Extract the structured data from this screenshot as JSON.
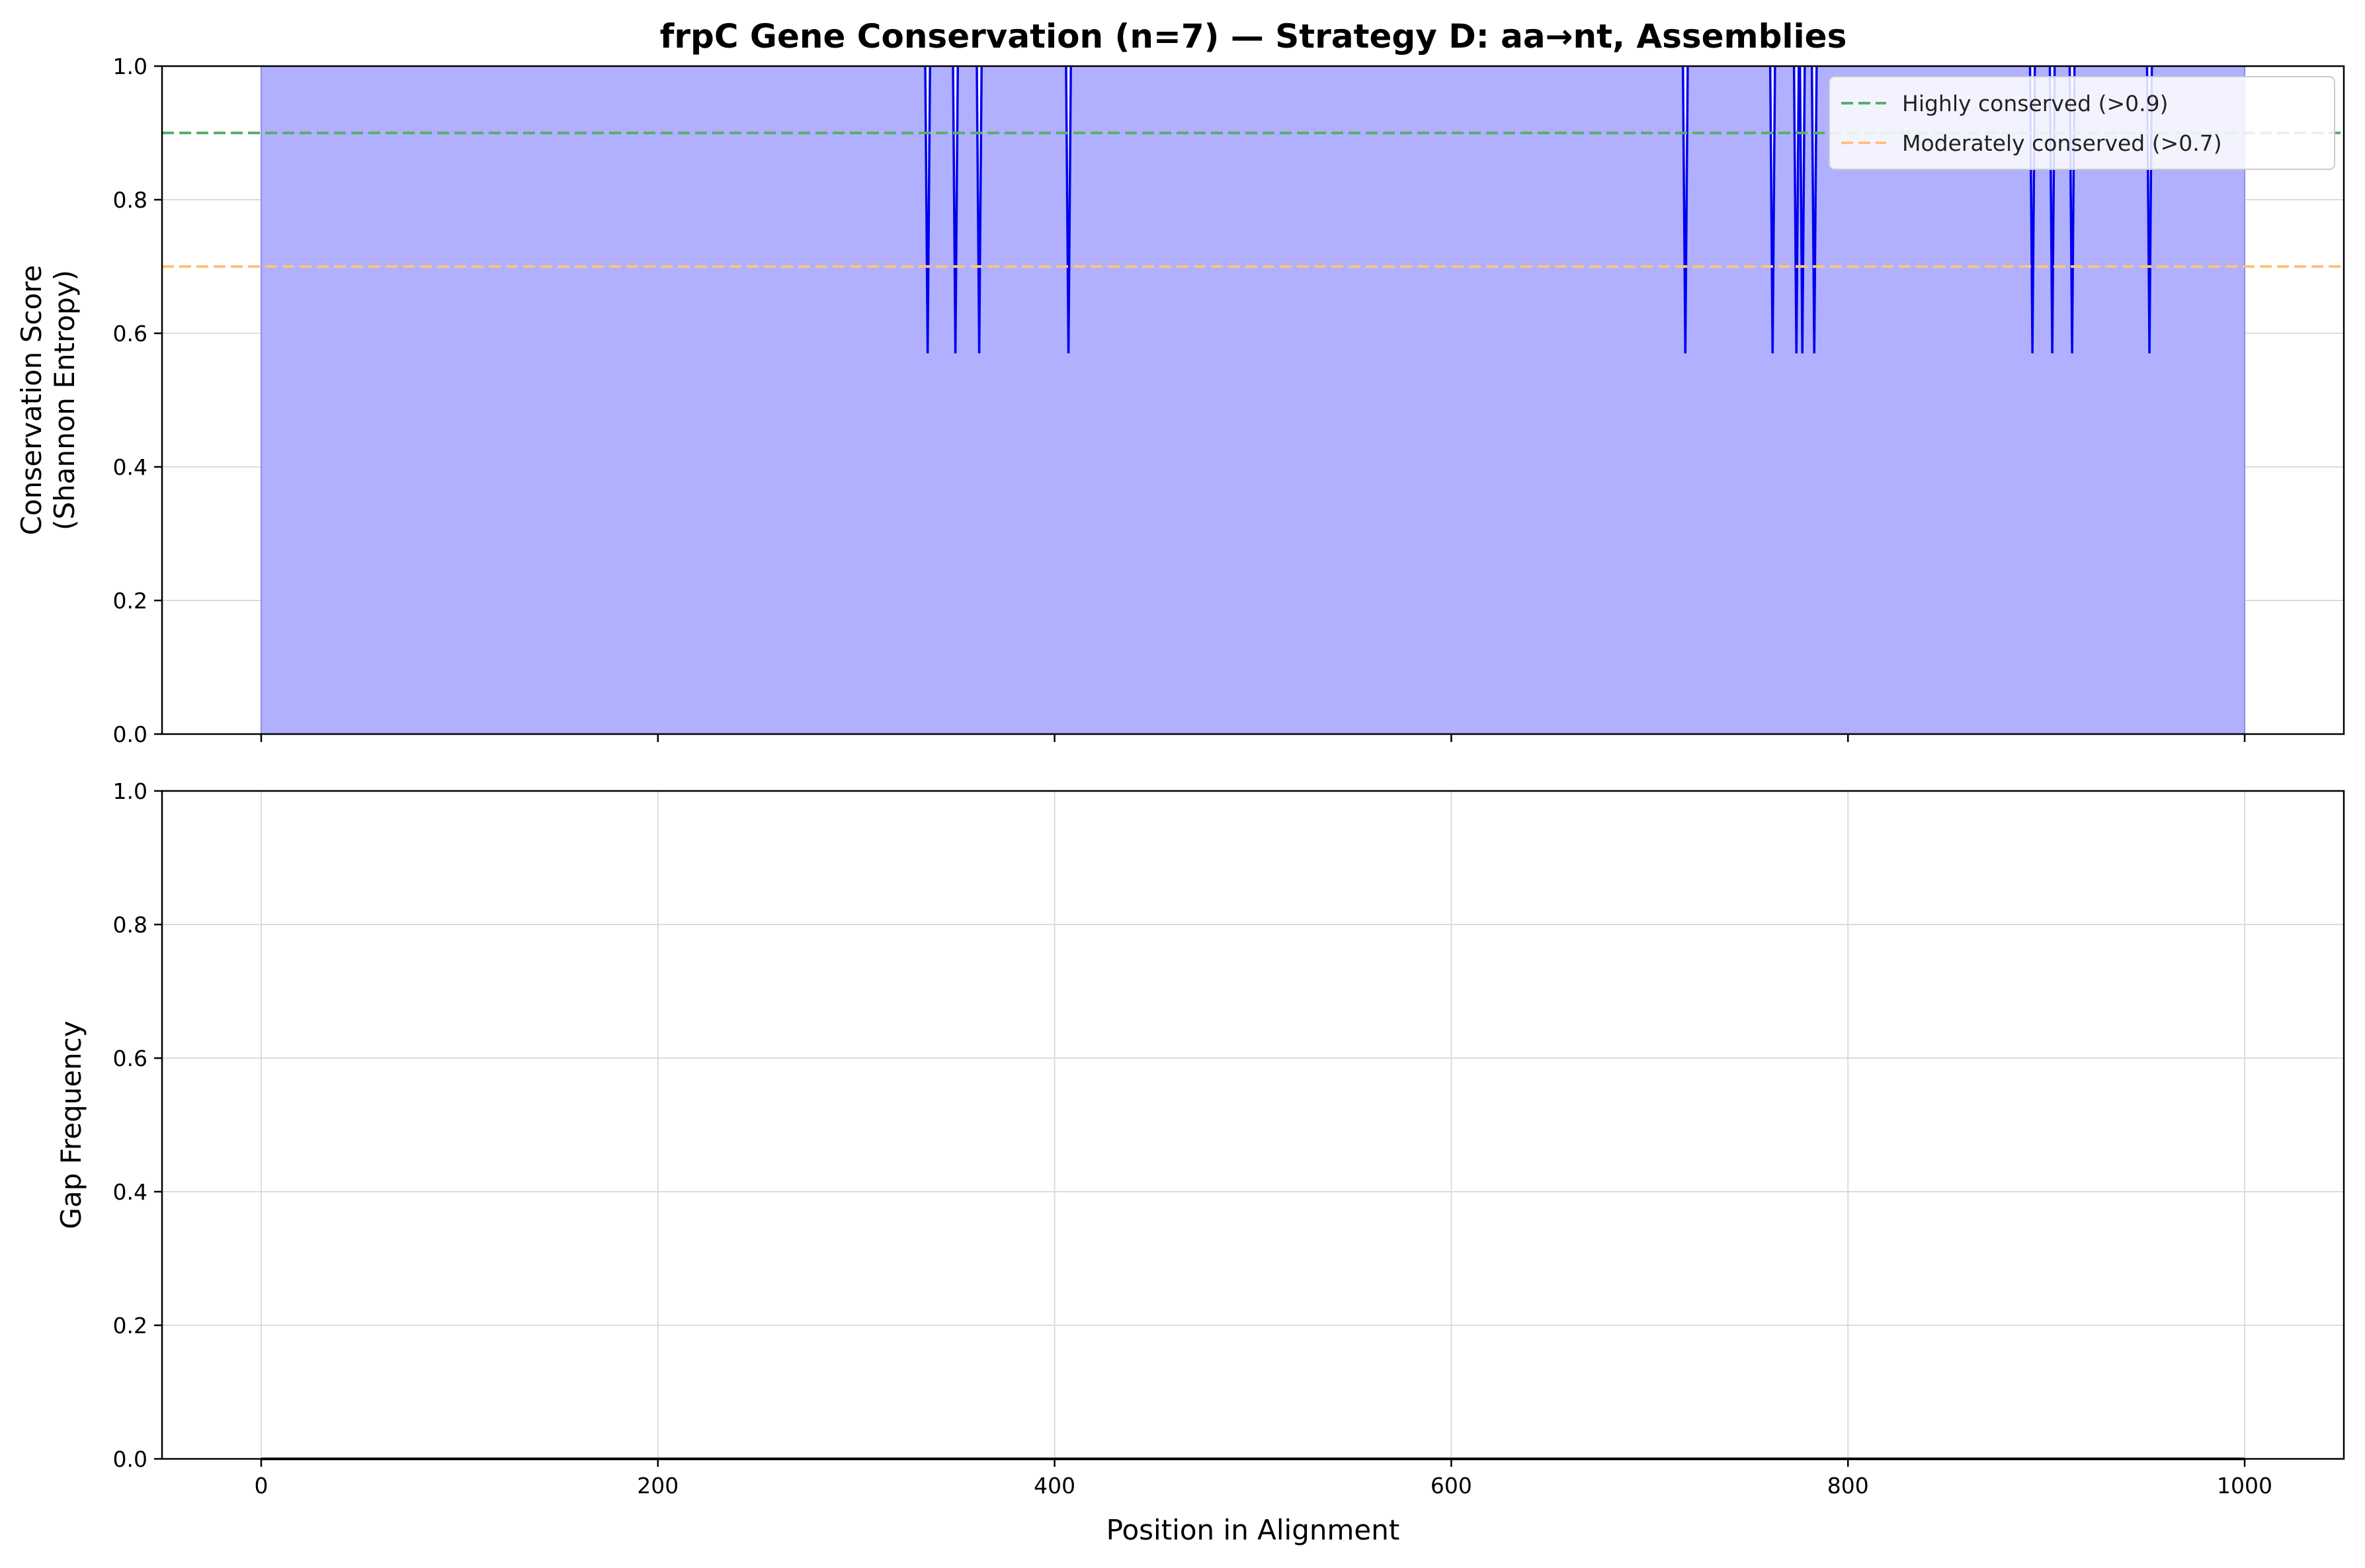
{
  "chart_data": [
    {
      "type": "area",
      "title": "frpC Gene Conservation (n=7) — Strategy D: aa→nt, Assemblies",
      "xlabel": "",
      "ylabel": [
        "Conservation Score",
        "(Shannon Entropy)"
      ],
      "xlim": [
        -50,
        1050
      ],
      "ylim": [
        0,
        1
      ],
      "x_ticks": [
        0,
        200,
        400,
        600,
        800,
        1000
      ],
      "y_ticks": [
        "0.0",
        "0.2",
        "0.4",
        "0.6",
        "0.8",
        "1.0"
      ],
      "grid": true,
      "legend": "top-right",
      "series": [
        {
          "x_range": [
            0,
            1000
          ],
          "baseline": 1.0,
          "dip_value": 0.57,
          "dip_positions": [
            336,
            350,
            362,
            407,
            718,
            762,
            774,
            777,
            783,
            893,
            903,
            913,
            952
          ],
          "fill_color": "#b0b0ff",
          "line_color": "#0000ee"
        }
      ],
      "reference_lines": [
        {
          "y": 0.9,
          "label": "Highly conserved (>0.9)",
          "color": "#5aae6a"
        },
        {
          "y": 0.7,
          "label": "Moderately conserved (>0.7)",
          "color": "#ffc27a"
        }
      ]
    },
    {
      "type": "line",
      "title": "",
      "xlabel": "Position in Alignment",
      "ylabel": "Gap Frequency",
      "xlim": [
        -50,
        1050
      ],
      "ylim": [
        0,
        1
      ],
      "x_ticks": [
        0,
        200,
        400,
        600,
        800,
        1000
      ],
      "y_ticks": [
        "0.0",
        "0.2",
        "0.4",
        "0.6",
        "0.8",
        "1.0"
      ],
      "grid": true,
      "series": [
        {
          "x_range": [
            0,
            1000
          ],
          "constant_value": 0.0,
          "line_color": "#000000"
        }
      ]
    }
  ]
}
